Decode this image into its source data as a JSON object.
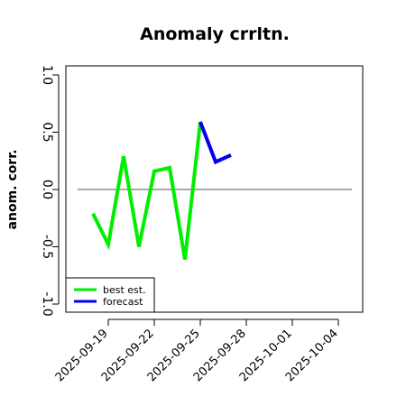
{
  "chart_data": {
    "type": "line",
    "title": "Anomaly crrltn.",
    "ylabel": "anom. corr.",
    "xlabel": "",
    "ylim": [
      -1.0,
      1.0
    ],
    "yticks": [
      "-1.0",
      "-0.5",
      "0.0",
      "0.5",
      "1.0"
    ],
    "ytick_values": [
      -1.0,
      -0.5,
      0.0,
      0.5,
      1.0
    ],
    "xticks": [
      "2025-09-19",
      "2025-09-22",
      "2025-09-25",
      "2025-09-28",
      "2025-10-01",
      "2025-10-04"
    ],
    "xtick_values": [
      "2025-09-19",
      "2025-09-22",
      "2025-09-25",
      "2025-09-28",
      "2025-10-01",
      "2025-10-04"
    ],
    "highlight_tick": "2025-09-25",
    "highlight_color": "#228b22",
    "reference_line": 0.0,
    "legend_position": "bottom-left",
    "series": [
      {
        "name": "best est.",
        "color": "#00ee00",
        "x": [
          "2025-09-18",
          "2025-09-19",
          "2025-09-20",
          "2025-09-21",
          "2025-09-22",
          "2025-09-23",
          "2025-09-24",
          "2025-09-25"
        ],
        "values": [
          -0.21,
          -0.48,
          0.29,
          -0.5,
          0.16,
          0.19,
          -0.61,
          0.59
        ]
      },
      {
        "name": "forecast",
        "color": "#0000ee",
        "x": [
          "2025-09-25",
          "2025-09-26",
          "2025-09-27"
        ],
        "values": [
          0.59,
          0.24,
          0.3
        ]
      }
    ]
  }
}
